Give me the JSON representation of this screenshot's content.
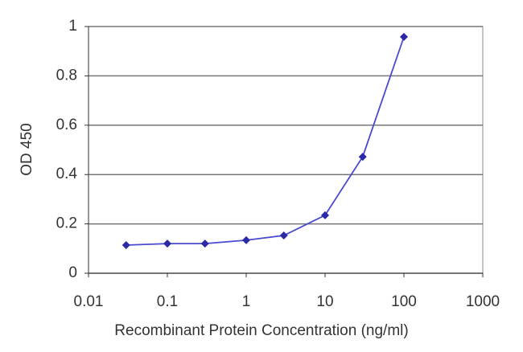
{
  "chart_data": {
    "type": "line",
    "x_label": "Recombinant Protein Concentration (ng/ml)",
    "y_label": "OD 450",
    "x": [
      0.03,
      0.1,
      0.3,
      1,
      3,
      10,
      30,
      100
    ],
    "series": [
      {
        "name": "OD 450",
        "color": "#2a2aa8",
        "values": [
          0.114,
          0.12,
          0.12,
          0.134,
          0.153,
          0.235,
          0.472,
          0.958
        ]
      }
    ],
    "xscale": "log",
    "xlim": [
      0.01,
      1000
    ],
    "xticks": [
      0.01,
      0.1,
      1,
      10,
      100,
      1000
    ],
    "ylim": [
      0,
      1
    ],
    "yticks": [
      0,
      0.2,
      0.4,
      0.6,
      0.8,
      1
    ],
    "grid": true,
    "legend": false
  }
}
